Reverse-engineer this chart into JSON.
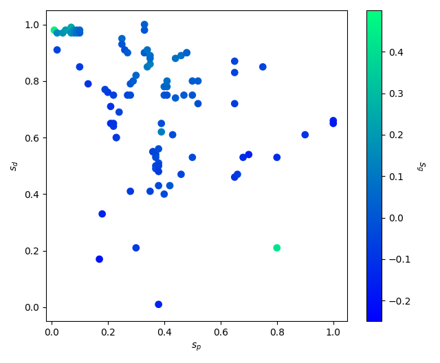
{
  "title": "",
  "xlabel": "$s_p$",
  "ylabel": "$s_d$",
  "colorbar_label": "$s_g$",
  "vmin": -0.25,
  "vmax": 0.5,
  "colormap": "winter",
  "xlim": [
    -0.02,
    1.05
  ],
  "ylim": [
    -0.05,
    1.05
  ],
  "marker_size": 45,
  "points": [
    [
      0.01,
      0.98,
      0.45
    ],
    [
      0.02,
      0.97,
      0.15
    ],
    [
      0.04,
      0.97,
      0.18
    ],
    [
      0.05,
      0.98,
      0.2
    ],
    [
      0.06,
      0.98,
      0.22
    ],
    [
      0.07,
      0.99,
      0.25
    ],
    [
      0.07,
      0.97,
      0.18
    ],
    [
      0.08,
      0.98,
      0.15
    ],
    [
      0.08,
      0.97,
      0.12
    ],
    [
      0.09,
      0.98,
      0.1
    ],
    [
      0.09,
      0.97,
      0.08
    ],
    [
      0.1,
      0.98,
      0.05
    ],
    [
      0.1,
      0.97,
      0.03
    ],
    [
      0.02,
      0.91,
      -0.05
    ],
    [
      0.1,
      0.85,
      -0.08
    ],
    [
      0.13,
      0.79,
      -0.1
    ],
    [
      0.17,
      0.17,
      -0.2
    ],
    [
      0.18,
      0.33,
      -0.15
    ],
    [
      0.19,
      0.77,
      -0.05
    ],
    [
      0.2,
      0.76,
      -0.08
    ],
    [
      0.21,
      0.71,
      -0.1
    ],
    [
      0.21,
      0.65,
      -0.12
    ],
    [
      0.22,
      0.75,
      -0.06
    ],
    [
      0.22,
      0.64,
      -0.08
    ],
    [
      0.22,
      0.65,
      -0.1
    ],
    [
      0.23,
      0.6,
      -0.12
    ],
    [
      0.23,
      0.6,
      -0.08
    ],
    [
      0.24,
      0.69,
      -0.05
    ],
    [
      0.25,
      0.95,
      0.05
    ],
    [
      0.25,
      0.93,
      0.0
    ],
    [
      0.26,
      0.91,
      -0.02
    ],
    [
      0.27,
      0.9,
      0.02
    ],
    [
      0.27,
      0.75,
      -0.05
    ],
    [
      0.28,
      0.75,
      -0.03
    ],
    [
      0.28,
      0.79,
      0.0
    ],
    [
      0.28,
      0.41,
      -0.08
    ],
    [
      0.29,
      0.8,
      0.02
    ],
    [
      0.3,
      0.82,
      0.05
    ],
    [
      0.3,
      0.21,
      -0.08
    ],
    [
      0.33,
      0.98,
      0.0
    ],
    [
      0.33,
      1.0,
      0.03
    ],
    [
      0.33,
      0.9,
      0.05
    ],
    [
      0.33,
      0.9,
      0.02
    ],
    [
      0.34,
      0.91,
      0.08
    ],
    [
      0.34,
      0.85,
      0.1
    ],
    [
      0.35,
      0.86,
      0.12
    ],
    [
      0.35,
      0.89,
      0.08
    ],
    [
      0.35,
      0.88,
      0.06
    ],
    [
      0.35,
      0.41,
      -0.05
    ],
    [
      0.36,
      0.55,
      -0.03
    ],
    [
      0.36,
      0.55,
      -0.05
    ],
    [
      0.37,
      0.54,
      -0.05
    ],
    [
      0.37,
      0.53,
      -0.03
    ],
    [
      0.37,
      0.5,
      -0.05
    ],
    [
      0.37,
      0.49,
      -0.03
    ],
    [
      0.38,
      0.56,
      -0.02
    ],
    [
      0.38,
      0.51,
      -0.03
    ],
    [
      0.38,
      0.5,
      -0.05
    ],
    [
      0.38,
      0.48,
      -0.08
    ],
    [
      0.38,
      0.43,
      -0.03
    ],
    [
      0.38,
      0.01,
      -0.15
    ],
    [
      0.39,
      0.65,
      -0.02
    ],
    [
      0.39,
      0.62,
      0.12
    ],
    [
      0.4,
      0.4,
      -0.03
    ],
    [
      0.4,
      0.78,
      0.05
    ],
    [
      0.4,
      0.75,
      0.0
    ],
    [
      0.41,
      0.78,
      0.05
    ],
    [
      0.41,
      0.75,
      -0.02
    ],
    [
      0.41,
      0.8,
      0.07
    ],
    [
      0.42,
      0.43,
      -0.0
    ],
    [
      0.43,
      0.61,
      -0.02
    ],
    [
      0.44,
      0.88,
      0.08
    ],
    [
      0.44,
      0.74,
      0.02
    ],
    [
      0.46,
      0.89,
      0.08
    ],
    [
      0.47,
      0.75,
      0.02
    ],
    [
      0.48,
      0.9,
      0.06
    ],
    [
      0.48,
      0.9,
      0.04
    ],
    [
      0.5,
      0.8,
      0.02
    ],
    [
      0.5,
      0.75,
      0.0
    ],
    [
      0.5,
      0.53,
      -0.03
    ],
    [
      0.52,
      0.72,
      -0.02
    ],
    [
      0.52,
      0.8,
      0.02
    ],
    [
      0.46,
      0.47,
      -0.05
    ],
    [
      0.65,
      0.87,
      -0.05
    ],
    [
      0.65,
      0.83,
      -0.05
    ],
    [
      0.65,
      0.72,
      -0.07
    ],
    [
      0.65,
      0.46,
      -0.1
    ],
    [
      0.66,
      0.47,
      -0.08
    ],
    [
      0.68,
      0.53,
      -0.12
    ],
    [
      0.7,
      0.54,
      -0.15
    ],
    [
      0.75,
      0.85,
      -0.05
    ],
    [
      0.8,
      0.21,
      0.42
    ],
    [
      0.8,
      0.53,
      -0.12
    ],
    [
      0.9,
      0.61,
      -0.1
    ],
    [
      1.0,
      0.66,
      -0.15
    ],
    [
      1.0,
      0.65,
      -0.18
    ]
  ]
}
